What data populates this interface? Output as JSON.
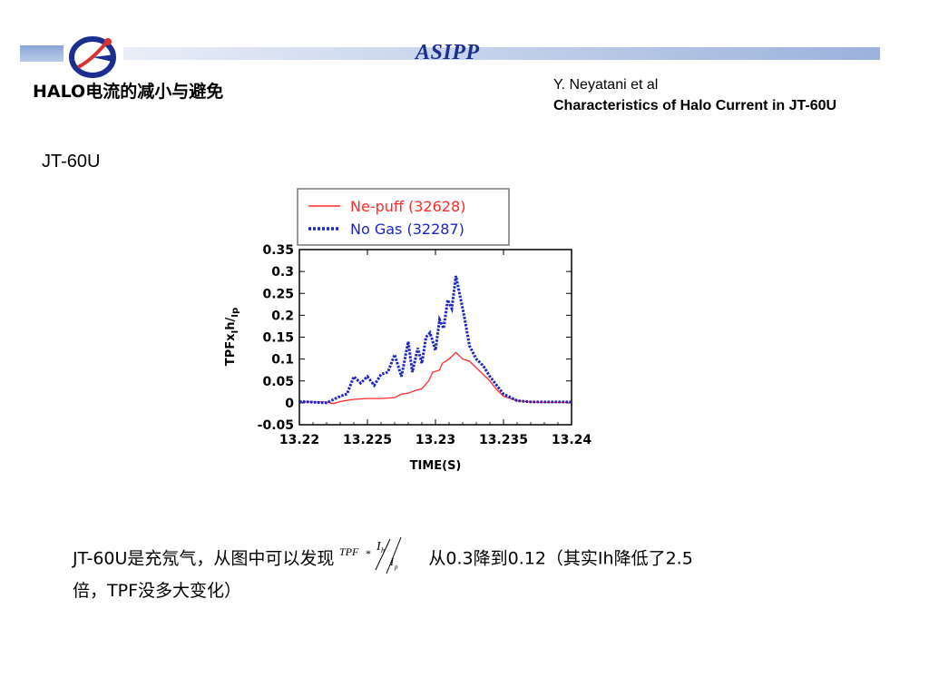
{
  "header": {
    "brand": "ASIPP"
  },
  "slide": {
    "title": "HALO电流的减小与避免",
    "reference_author": "Y. Neyatani et al",
    "reference_title": "Characteristics of Halo Current in JT-60U",
    "machine_label": "JT-60U"
  },
  "chart_data": {
    "type": "line",
    "xlabel": "TIME(S)",
    "ylabel": "TPFxIh/Ip0",
    "xlim": [
      13.22,
      13.24
    ],
    "ylim": [
      -0.05,
      0.35
    ],
    "xticks": [
      "13.22",
      "13.225",
      "13.23",
      "13.235",
      "13.24"
    ],
    "yticks": [
      "0.35",
      "0.3",
      "0.25",
      "0.2",
      "0.15",
      "0.1",
      "0.05",
      "0",
      "-0.05"
    ],
    "legend_placement": "top (above plot, boxed)",
    "series": [
      {
        "name": "Ne-puff (32628)",
        "color": "#ff2a2a",
        "style": "solid",
        "x": [
          13.22,
          13.222,
          13.2225,
          13.223,
          13.224,
          13.225,
          13.226,
          13.227,
          13.2275,
          13.228,
          13.2285,
          13.229,
          13.2295,
          13.2298,
          13.2303,
          13.2305,
          13.231,
          13.2315,
          13.232,
          13.2325,
          13.233,
          13.2335,
          13.234,
          13.2345,
          13.235,
          13.236,
          13.237,
          13.238,
          13.24
        ],
        "y": [
          0.002,
          0.002,
          -0.002,
          0.003,
          0.008,
          0.01,
          0.01,
          0.012,
          0.02,
          0.022,
          0.028,
          0.032,
          0.05,
          0.07,
          0.075,
          0.09,
          0.1,
          0.115,
          0.1,
          0.095,
          0.08,
          0.065,
          0.05,
          0.03,
          0.015,
          0.005,
          0.002,
          0.001,
          0.001
        ]
      },
      {
        "name": "No Gas (32287)",
        "color": "#1a26c8",
        "style": "dotted",
        "x": [
          13.22,
          13.222,
          13.223,
          13.2235,
          13.224,
          13.2245,
          13.225,
          13.2255,
          13.226,
          13.2265,
          13.227,
          13.2275,
          13.228,
          13.2283,
          13.2287,
          13.229,
          13.2293,
          13.2296,
          13.23,
          13.2303,
          13.2306,
          13.2309,
          13.2312,
          13.2315,
          13.2318,
          13.2321,
          13.2325,
          13.233,
          13.2335,
          13.234,
          13.2345,
          13.235,
          13.236,
          13.237,
          13.238,
          13.24
        ],
        "y": [
          0.003,
          0.0,
          0.015,
          0.02,
          0.06,
          0.045,
          0.06,
          0.04,
          0.065,
          0.07,
          0.11,
          0.06,
          0.14,
          0.07,
          0.125,
          0.09,
          0.15,
          0.16,
          0.12,
          0.19,
          0.17,
          0.235,
          0.215,
          0.29,
          0.245,
          0.2,
          0.13,
          0.1,
          0.085,
          0.06,
          0.04,
          0.02,
          0.005,
          0.002,
          0.002,
          0.002
        ]
      }
    ]
  },
  "caption": {
    "text_before": "JT-60U是充氖气，从图中可以发现",
    "text_after": "从0.3降到0.12（其实Ih降低了2.5",
    "line2": "倍，TPF没多大变化）",
    "formula": {
      "prefix": "TPF",
      "operator": "*",
      "numerator": "I",
      "numerator_sub": "h",
      "denominator": "I",
      "denominator_sub": "p"
    }
  }
}
